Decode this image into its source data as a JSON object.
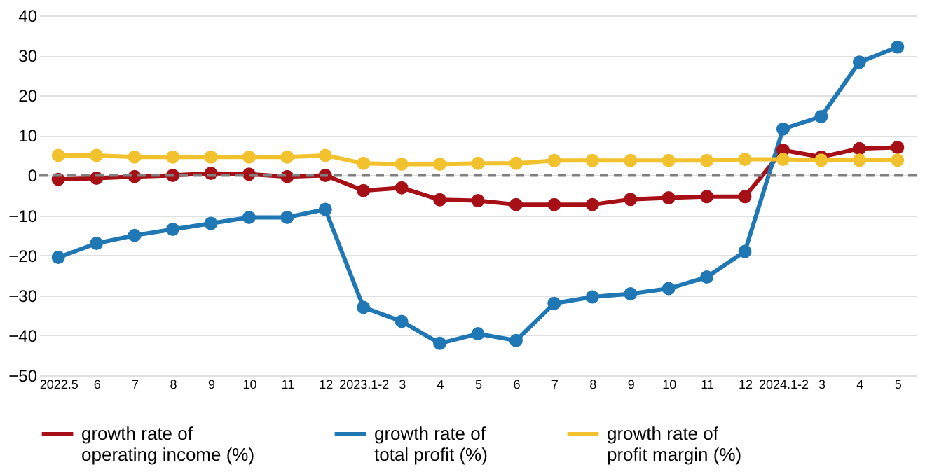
{
  "chart_data": {
    "type": "line",
    "categories": [
      "2022.5",
      "6",
      "7",
      "8",
      "9",
      "10",
      "11",
      "12",
      "2023.1-2",
      "3",
      "4",
      "5",
      "6",
      "7",
      "8",
      "9",
      "10",
      "11",
      "12",
      "2024.1-2",
      "3",
      "4",
      "5"
    ],
    "series": [
      {
        "name": "growth rate of operating income (%)",
        "color": "#a50f15",
        "values": [
          -1,
          -0.7,
          -0.3,
          0,
          0.5,
          0.3,
          -0.3,
          0,
          -3.8,
          -3.1,
          -6.1,
          -6.3,
          -7.3,
          -7.3,
          -7.3,
          -6,
          -5.6,
          -5.3,
          -5.3,
          6.3,
          4.6,
          6.7,
          7
        ]
      },
      {
        "name": "growth rate of total profit (%)",
        "color": "#1f77b4",
        "values": [
          -20.5,
          -17,
          -15,
          -13.5,
          -12,
          -10.5,
          -10.5,
          -8.5,
          -33,
          -36.5,
          -42,
          -39.6,
          -41.3,
          -32,
          -30.4,
          -29.6,
          -28.3,
          -25.4,
          -19,
          11.6,
          14.7,
          28.3,
          32.1
        ]
      },
      {
        "name": "growth rate of profit margin (%)",
        "color": "#f2c12e",
        "values": [
          5,
          5,
          4.6,
          4.6,
          4.6,
          4.6,
          4.6,
          5,
          3,
          2.8,
          2.8,
          3,
          3,
          3.7,
          3.7,
          3.7,
          3.7,
          3.7,
          4,
          4,
          3.8,
          3.8,
          3.8
        ]
      }
    ],
    "ylim": [
      -50,
      40
    ],
    "yticks": [
      -50,
      -40,
      -30,
      -20,
      -10,
      0,
      10,
      20,
      30,
      40
    ],
    "ref_lines": [
      {
        "axis": "y",
        "value": 0,
        "label": null,
        "color": "#808080",
        "line_style": "dashed"
      }
    ],
    "grid": "y",
    "legend": "bottom",
    "marker": "circle",
    "line_style": "solid"
  }
}
